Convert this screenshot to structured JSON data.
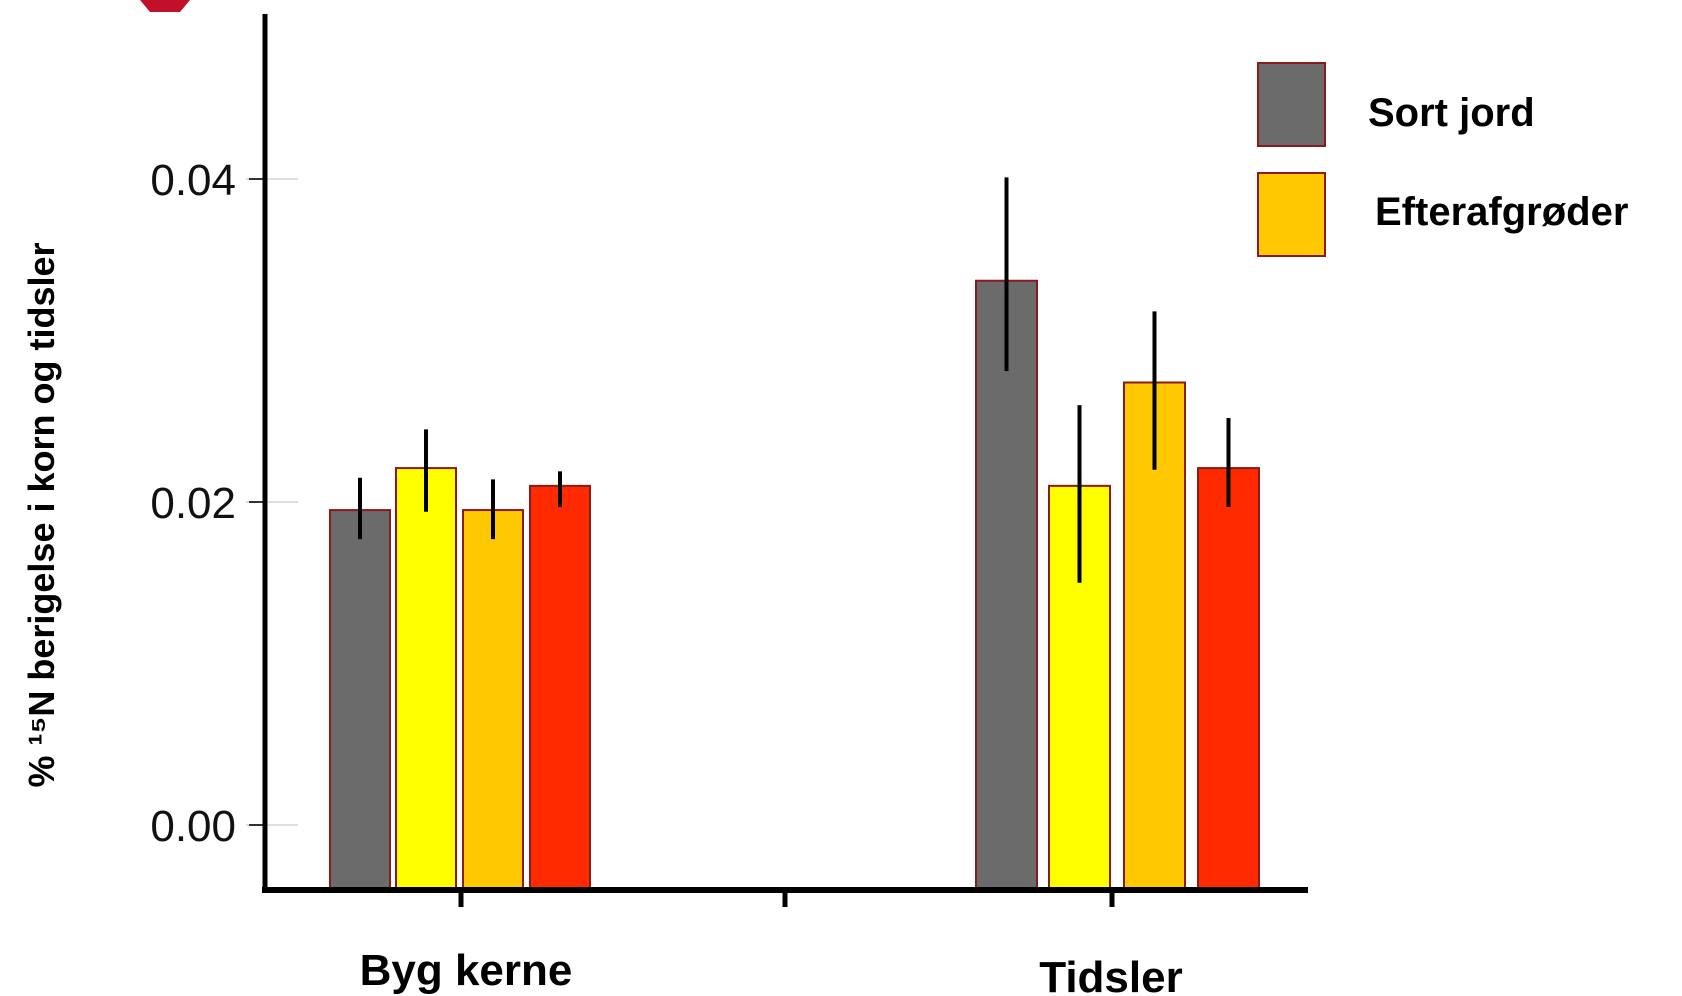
{
  "chart_data": {
    "type": "bar",
    "categories": [
      "Byg kerne",
      "Tidsler"
    ],
    "ylabel": "% ¹⁵N berigelse i korn og tidsler",
    "ylim": [
      -0.004,
      0.05
    ],
    "yticks": [
      0.0,
      0.02,
      0.04
    ],
    "ytick_labels": [
      "0.00",
      "0.02",
      "0.04"
    ],
    "grid": false,
    "legend_position": "top-right",
    "series": [
      {
        "name": "Sort jord",
        "color": "#6b6b6b",
        "values": [
          0.0195,
          0.0337
        ],
        "err_low": [
          0.0177,
          0.0281
        ],
        "err_high": [
          0.0215,
          0.0401
        ]
      },
      {
        "color": "#ffff00",
        "values": [
          0.0221,
          0.021
        ],
        "err_low": [
          0.0194,
          0.015
        ],
        "err_high": [
          0.0245,
          0.026
        ]
      },
      {
        "name": "Efterafgrøder",
        "color": "#ffc800",
        "values": [
          0.0195,
          0.0274
        ],
        "err_low": [
          0.0177,
          0.022
        ],
        "err_high": [
          0.0214,
          0.0318
        ]
      },
      {
        "color": "#ff2a00",
        "values": [
          0.021,
          0.0221
        ],
        "err_low": [
          0.0197,
          0.0197
        ],
        "err_high": [
          0.0219,
          0.0252
        ]
      }
    ],
    "legend": [
      "Sort jord",
      "Efterafgrøder"
    ],
    "bar_stroke": "#8b1a1a"
  }
}
